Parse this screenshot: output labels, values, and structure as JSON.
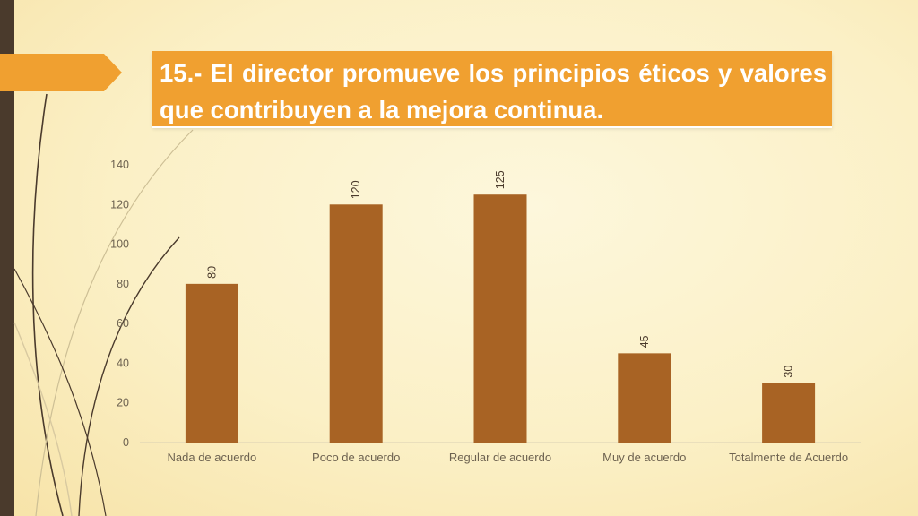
{
  "slide": {
    "title": "15.- El director promueve los principios éticos y valores que contribuyen a la mejora continua.",
    "colors": {
      "accent": "#f0a030",
      "bar": "#a86324",
      "sidebar": "#4a3a2c"
    }
  },
  "chart_data": {
    "type": "bar",
    "categories": [
      "Nada de acuerdo",
      "Poco de acuerdo",
      "Regular de acuerdo",
      "Muy de acuerdo",
      "Totalmente de Acuerdo"
    ],
    "values": [
      80,
      120,
      125,
      45,
      30
    ],
    "data_labels": [
      "80",
      "120",
      "125",
      "45",
      "30"
    ],
    "yticks": [
      0,
      20,
      40,
      60,
      80,
      100,
      120,
      140
    ],
    "ylim": [
      0,
      140
    ],
    "grid": false,
    "legend": "none"
  }
}
